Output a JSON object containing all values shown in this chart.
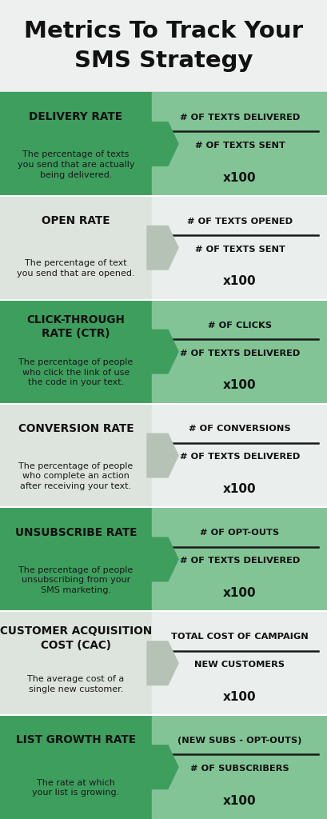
{
  "title": "Metrics To Track Your\nSMS Strategy",
  "title_bg": "#edf0ef",
  "title_fontsize": 21,
  "metrics": [
    {
      "name": "DELIVERY RATE",
      "description": "The percentage of texts\nyou send that are actually\nbeing delivered.",
      "numerator": "# OF TEXTS DELIVERED",
      "denominator": "# OF TEXTS SENT",
      "multiplier": "x100",
      "bg_left": "#3d9e5e",
      "bg_right": "#82c496",
      "arrow_color": "#3d9e5e",
      "is_green": true
    },
    {
      "name": "OPEN RATE",
      "description": "The percentage of text\nyou send that are opened.",
      "numerator": "# OF TEXTS OPENED",
      "denominator": "# OF TEXTS SENT",
      "multiplier": "x100",
      "bg_left": "#dde3dd",
      "bg_right": "#eaeeed",
      "arrow_color": "#b5c2b5",
      "is_green": false
    },
    {
      "name": "CLICK-THROUGH\nRATE (CTR)",
      "description": "The percentage of people\nwho click the link of use\nthe code in your text.",
      "numerator": "# OF CLICKS",
      "denominator": "# OF TEXTS DELIVERED",
      "multiplier": "x100",
      "bg_left": "#3d9e5e",
      "bg_right": "#82c496",
      "arrow_color": "#3d9e5e",
      "is_green": true
    },
    {
      "name": "CONVERSION RATE",
      "description": "The percentage of people\nwho complete an action\nafter receiving your text.",
      "numerator": "# OF CONVERSIONS",
      "denominator": "# OF TEXTS DELIVERED",
      "multiplier": "x100",
      "bg_left": "#dde3dd",
      "bg_right": "#eaeeed",
      "arrow_color": "#b5c2b5",
      "is_green": false
    },
    {
      "name": "UNSUBSCRIBE RATE",
      "description": "The percentage of people\nunsubscribing from your\nSMS marketing.",
      "numerator": "# OF OPT-OUTS",
      "denominator": "# OF TEXTS DELIVERED",
      "multiplier": "x100",
      "bg_left": "#3d9e5e",
      "bg_right": "#82c496",
      "arrow_color": "#3d9e5e",
      "is_green": true
    },
    {
      "name": "CUSTOMER ACQUISITION\nCOST (CAC)",
      "description": "The average cost of a\nsingle new customer.",
      "numerator": "TOTAL COST OF CAMPAIGN",
      "denominator": "NEW CUSTOMERS",
      "multiplier": "x100",
      "bg_left": "#dde3dd",
      "bg_right": "#eaeeed",
      "arrow_color": "#b5c2b5",
      "is_green": false
    },
    {
      "name": "LIST GROWTH RATE",
      "description": "The rate at which\nyour list is growing.",
      "numerator": "(NEW SUBS - OPT-OUTS)",
      "denominator": "# OF SUBSCRIBERS",
      "multiplier": "x100",
      "bg_left": "#3d9e5e",
      "bg_right": "#82c496",
      "arrow_color": "#3d9e5e",
      "is_green": true
    }
  ]
}
